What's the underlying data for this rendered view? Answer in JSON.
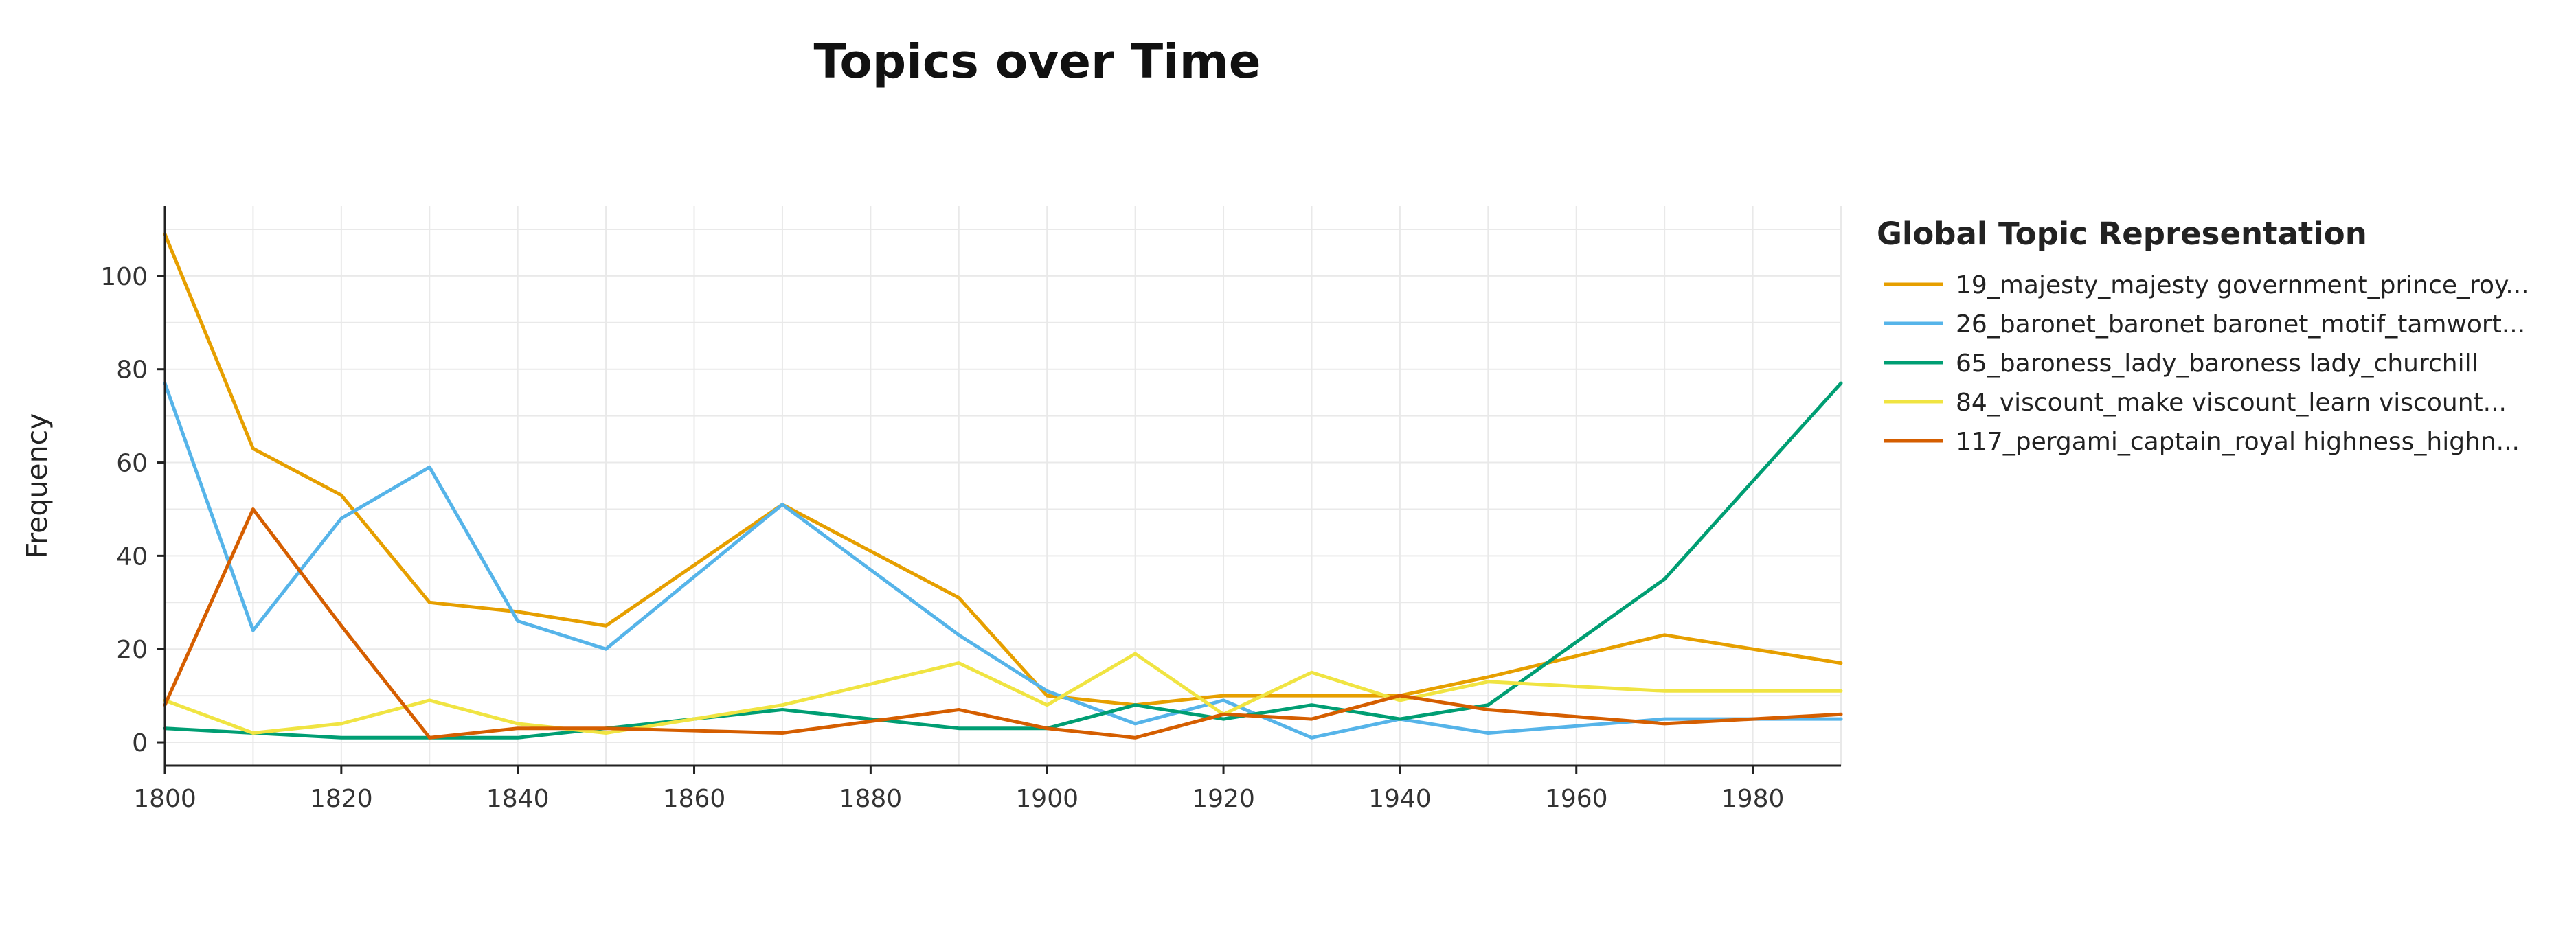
{
  "chart_data": {
    "type": "line",
    "title": "Topics over Time",
    "xlabel": "",
    "ylabel": "Frequency",
    "xlim": [
      1800,
      1990
    ],
    "ylim": [
      -5,
      115
    ],
    "x_ticks": [
      1800,
      1820,
      1840,
      1860,
      1880,
      1900,
      1920,
      1940,
      1960,
      1980
    ],
    "y_ticks": [
      0,
      20,
      40,
      60,
      80,
      100
    ],
    "grid": true,
    "legend": {
      "title": "Global Topic Representation",
      "placement": "right"
    },
    "series": [
      {
        "name": "19_majesty_majesty government_prince_roy...",
        "color": "#E69F00",
        "points": [
          [
            1800,
            109
          ],
          [
            1810,
            63
          ],
          [
            1820,
            53
          ],
          [
            1830,
            30
          ],
          [
            1840,
            28
          ],
          [
            1850,
            25
          ],
          [
            1870,
            51
          ],
          [
            1890,
            31
          ],
          [
            1900,
            10
          ],
          [
            1910,
            8
          ],
          [
            1920,
            10
          ],
          [
            1930,
            10
          ],
          [
            1940,
            10
          ],
          [
            1950,
            14
          ],
          [
            1970,
            23
          ],
          [
            1990,
            17
          ]
        ]
      },
      {
        "name": "26_baronet_baronet baronet_motif_tamwort...",
        "color": "#56B4E9",
        "points": [
          [
            1800,
            77
          ],
          [
            1810,
            24
          ],
          [
            1820,
            48
          ],
          [
            1830,
            59
          ],
          [
            1840,
            26
          ],
          [
            1850,
            20
          ],
          [
            1870,
            51
          ],
          [
            1890,
            23
          ],
          [
            1900,
            11
          ],
          [
            1910,
            4
          ],
          [
            1920,
            9
          ],
          [
            1930,
            1
          ],
          [
            1940,
            5
          ],
          [
            1950,
            2
          ],
          [
            1970,
            5
          ],
          [
            1990,
            5
          ]
        ]
      },
      {
        "name": "65_baroness_lady_baroness lady_churchill",
        "color": "#009E73",
        "points": [
          [
            1800,
            3
          ],
          [
            1810,
            2
          ],
          [
            1820,
            1
          ],
          [
            1830,
            1
          ],
          [
            1840,
            1
          ],
          [
            1850,
            3
          ],
          [
            1870,
            7
          ],
          [
            1890,
            3
          ],
          [
            1900,
            3
          ],
          [
            1910,
            8
          ],
          [
            1920,
            5
          ],
          [
            1930,
            8
          ],
          [
            1940,
            5
          ],
          [
            1950,
            8
          ],
          [
            1970,
            35
          ],
          [
            1990,
            77
          ]
        ]
      },
      {
        "name": "84_viscount_make viscount_learn viscount...",
        "color": "#F0E442",
        "points": [
          [
            1800,
            9
          ],
          [
            1810,
            2
          ],
          [
            1820,
            4
          ],
          [
            1830,
            9
          ],
          [
            1840,
            4
          ],
          [
            1850,
            2
          ],
          [
            1870,
            8
          ],
          [
            1890,
            17
          ],
          [
            1900,
            8
          ],
          [
            1910,
            19
          ],
          [
            1920,
            6
          ],
          [
            1930,
            15
          ],
          [
            1940,
            9
          ],
          [
            1950,
            13
          ],
          [
            1970,
            11
          ],
          [
            1990,
            11
          ]
        ]
      },
      {
        "name": "117_pergami_captain_royal highness_highn...",
        "color": "#D55E00",
        "points": [
          [
            1800,
            8
          ],
          [
            1810,
            50
          ],
          [
            1820,
            25
          ],
          [
            1830,
            1
          ],
          [
            1840,
            3
          ],
          [
            1850,
            3
          ],
          [
            1870,
            2
          ],
          [
            1890,
            7
          ],
          [
            1900,
            3
          ],
          [
            1910,
            1
          ],
          [
            1920,
            6
          ],
          [
            1930,
            5
          ],
          [
            1940,
            10
          ],
          [
            1950,
            7
          ],
          [
            1970,
            4
          ],
          [
            1990,
            6
          ]
        ]
      }
    ]
  }
}
